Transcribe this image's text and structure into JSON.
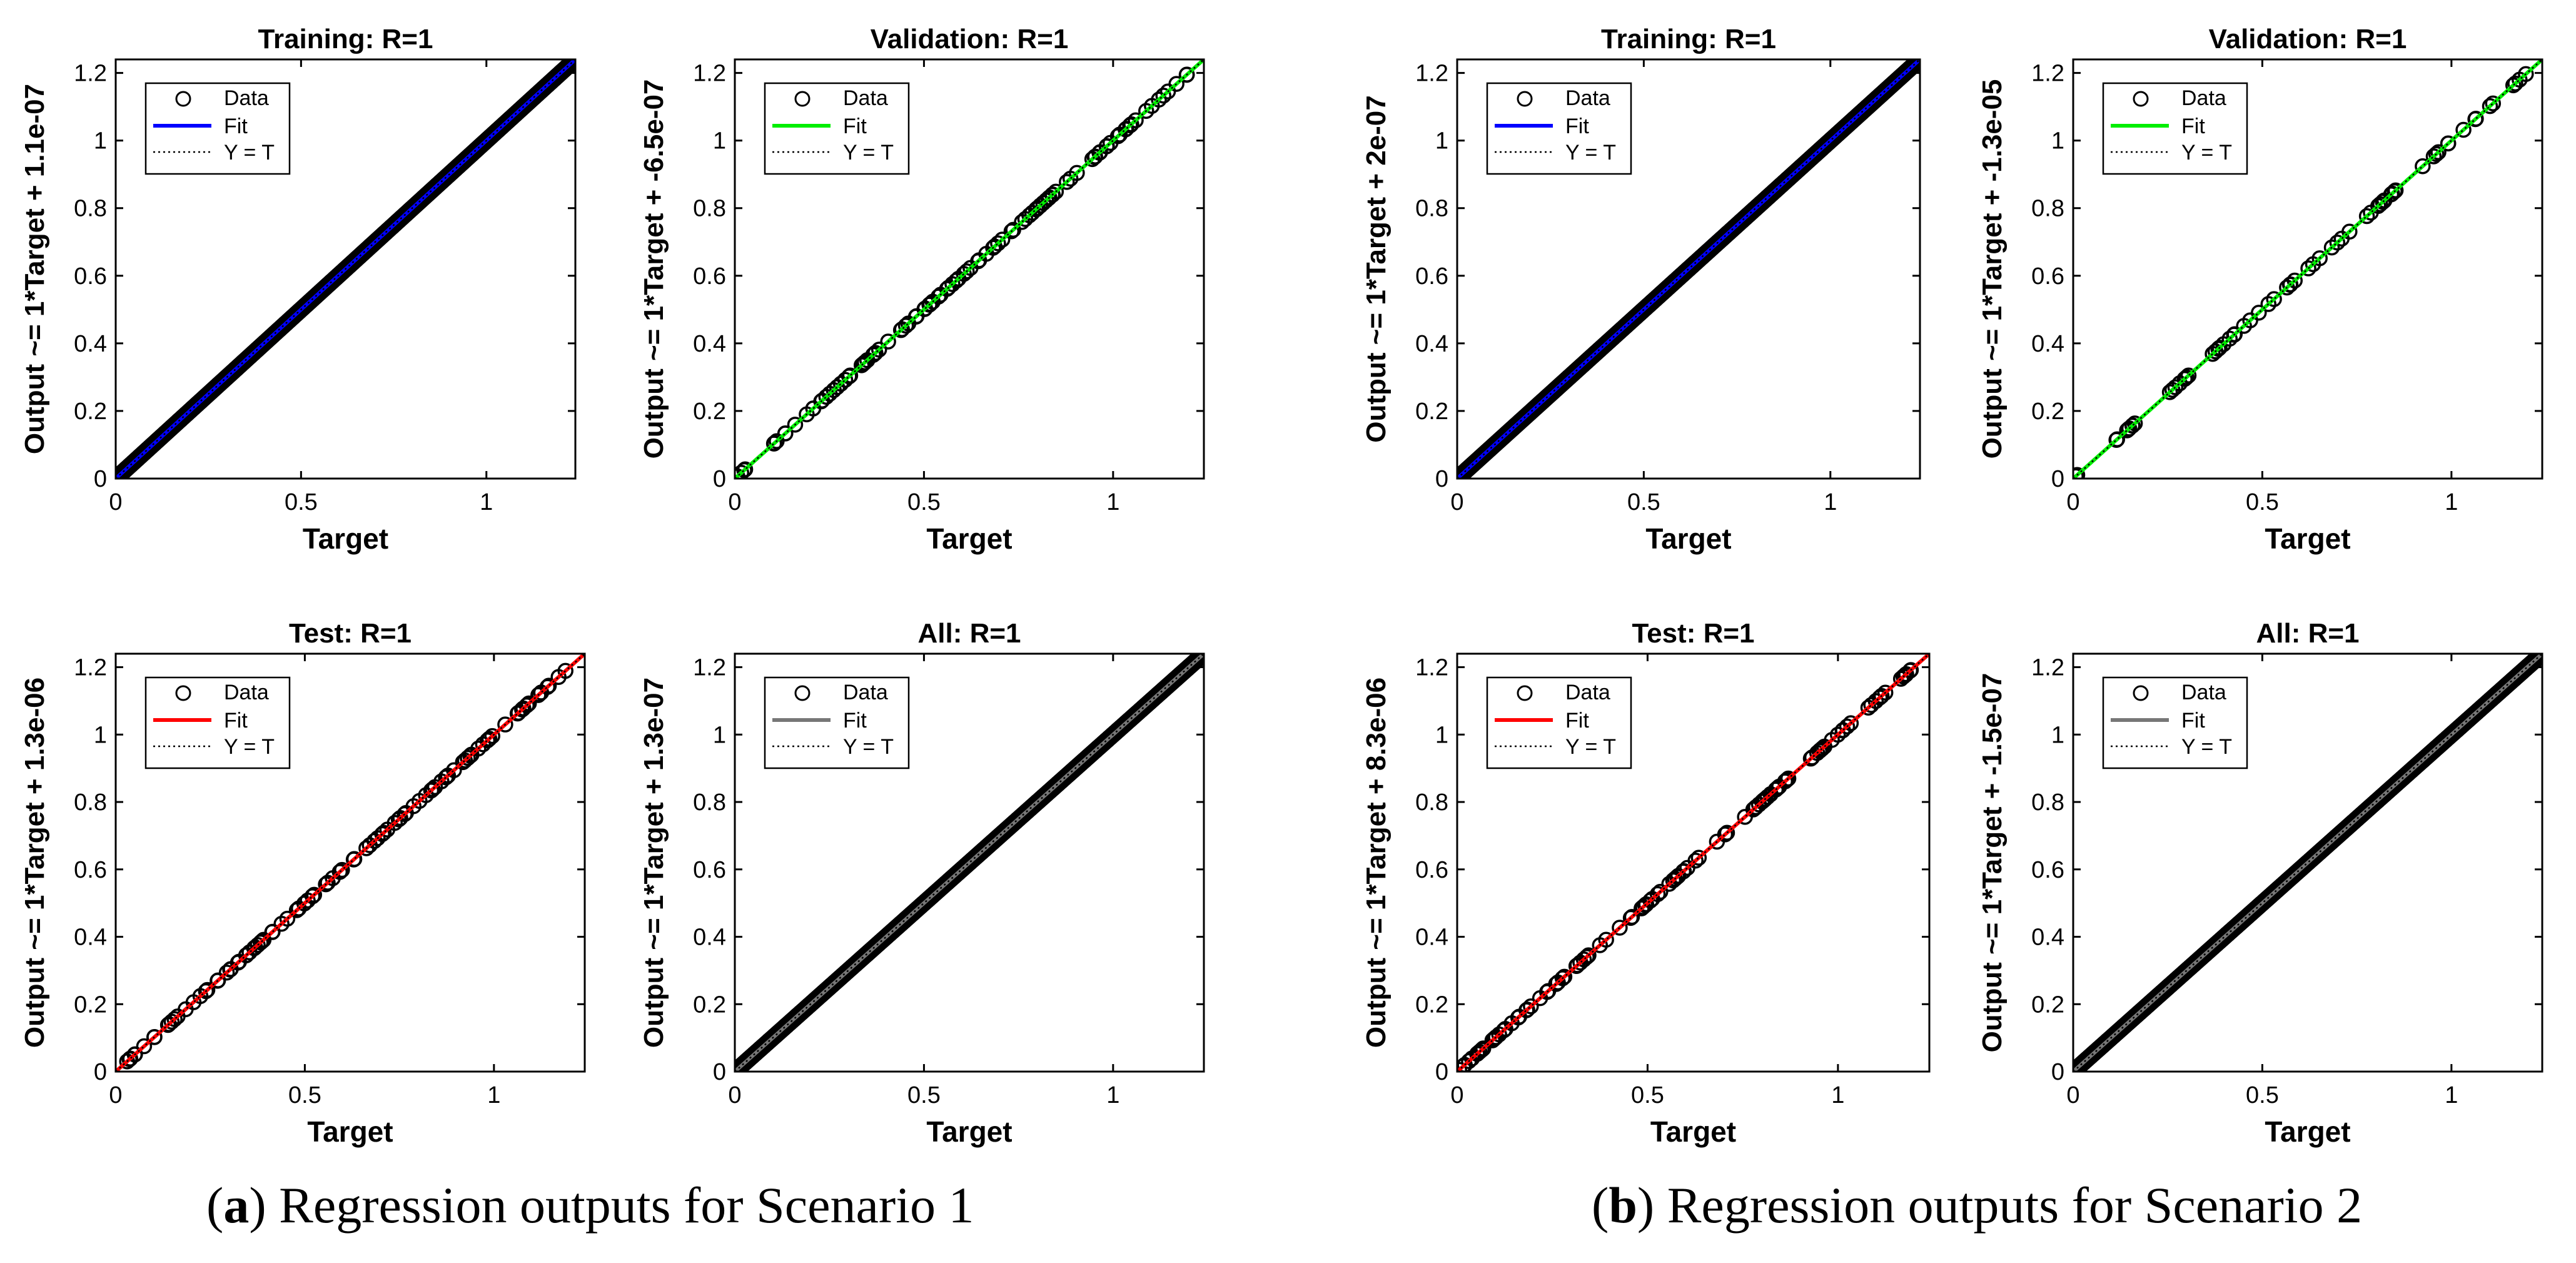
{
  "figure": {
    "captions": [
      {
        "paren_open": "(",
        "letter": "a",
        "text": ") Regression outputs for Scenario 1"
      },
      {
        "paren_open": "(",
        "letter": "b",
        "text": ") Regression outputs for Scenario 2"
      }
    ]
  },
  "colors": {
    "training": "#0000ff",
    "validation": "#00ee00",
    "test": "#ff0000",
    "all": "#777777",
    "data_marker": "#000000",
    "ideal_line": "#000000"
  },
  "chart_data": [
    {
      "id": "s1-training",
      "type": "scatter",
      "scenario": "a",
      "title": "Training: R=1",
      "xlabel": "Target",
      "ylabel": "Output ~= 1*Target + 1.1e-07",
      "fit_color_key": "training",
      "density": "dense",
      "xlim": [
        0,
        1.24
      ],
      "ylim": [
        0,
        1.24
      ],
      "xticks": [
        0,
        0.5,
        1
      ],
      "yticks": [
        0,
        0.2,
        0.4,
        0.6,
        0.8,
        1,
        1.2
      ],
      "legend": [
        "Data",
        "Fit",
        "Y = T"
      ],
      "legend_position": "top-left",
      "fit": {
        "slope": 1,
        "intercept": 1.1e-07
      }
    },
    {
      "id": "s1-validation",
      "type": "scatter",
      "scenario": "a",
      "title": "Validation: R=1",
      "xlabel": "Target",
      "ylabel": "Output ~= 1*Target + -6.5e-07",
      "fit_color_key": "validation",
      "density": "sparse",
      "xlim": [
        0,
        1.24
      ],
      "ylim": [
        0,
        1.24
      ],
      "xticks": [
        0,
        0.5,
        1
      ],
      "yticks": [
        0,
        0.2,
        0.4,
        0.6,
        0.8,
        1,
        1.2
      ],
      "legend": [
        "Data",
        "Fit",
        "Y = T"
      ],
      "legend_position": "top-left",
      "fit": {
        "slope": 1,
        "intercept": -6.5e-07
      }
    },
    {
      "id": "s2-training",
      "type": "scatter",
      "scenario": "b",
      "title": "Training: R=1",
      "xlabel": "Target",
      "ylabel": "Output ~= 1*Target + 2e-07",
      "fit_color_key": "training",
      "density": "dense",
      "xlim": [
        0,
        1.24
      ],
      "ylim": [
        0,
        1.24
      ],
      "xticks": [
        0,
        0.5,
        1
      ],
      "yticks": [
        0,
        0.2,
        0.4,
        0.6,
        0.8,
        1,
        1.2
      ],
      "legend": [
        "Data",
        "Fit",
        "Y = T"
      ],
      "legend_position": "top-left",
      "fit": {
        "slope": 1,
        "intercept": 2e-07
      }
    },
    {
      "id": "s2-validation",
      "type": "scatter",
      "scenario": "b",
      "title": "Validation: R=1",
      "xlabel": "Target",
      "ylabel": "Output ~= 1*Target + -1.3e-05",
      "fit_color_key": "validation",
      "density": "sparse",
      "xlim": [
        0,
        1.24
      ],
      "ylim": [
        0,
        1.24
      ],
      "xticks": [
        0,
        0.5,
        1
      ],
      "yticks": [
        0,
        0.2,
        0.4,
        0.6,
        0.8,
        1,
        1.2
      ],
      "legend": [
        "Data",
        "Fit",
        "Y = T"
      ],
      "legend_position": "top-left",
      "fit": {
        "slope": 1,
        "intercept": -1.3e-05
      }
    },
    {
      "id": "s1-test",
      "type": "scatter",
      "scenario": "a",
      "title": "Test: R=1",
      "xlabel": "Target",
      "ylabel": "Output ~= 1*Target + 1.3e-06",
      "fit_color_key": "test",
      "density": "sparse",
      "xlim": [
        0,
        1.24
      ],
      "ylim": [
        0,
        1.24
      ],
      "xticks": [
        0,
        0.5,
        1
      ],
      "yticks": [
        0,
        0.2,
        0.4,
        0.6,
        0.8,
        1,
        1.2
      ],
      "legend": [
        "Data",
        "Fit",
        "Y = T"
      ],
      "legend_position": "top-left",
      "fit": {
        "slope": 1,
        "intercept": 1.3e-06
      }
    },
    {
      "id": "s1-all",
      "type": "scatter",
      "scenario": "a",
      "title": "All: R=1",
      "xlabel": "Target",
      "ylabel": "Output ~= 1*Target + 1.3e-07",
      "fit_color_key": "all",
      "density": "dense",
      "xlim": [
        0,
        1.24
      ],
      "ylim": [
        0,
        1.24
      ],
      "xticks": [
        0,
        0.5,
        1
      ],
      "yticks": [
        0,
        0.2,
        0.4,
        0.6,
        0.8,
        1,
        1.2
      ],
      "legend": [
        "Data",
        "Fit",
        "Y = T"
      ],
      "legend_position": "top-left",
      "fit": {
        "slope": 1,
        "intercept": 1.3e-07
      }
    },
    {
      "id": "s2-test",
      "type": "scatter",
      "scenario": "b",
      "title": "Test: R=1",
      "xlabel": "Target",
      "ylabel": "Output ~= 1*Target + 8.3e-06",
      "fit_color_key": "test",
      "density": "sparse",
      "xlim": [
        0,
        1.24
      ],
      "ylim": [
        0,
        1.24
      ],
      "xticks": [
        0,
        0.5,
        1
      ],
      "yticks": [
        0,
        0.2,
        0.4,
        0.6,
        0.8,
        1,
        1.2
      ],
      "legend": [
        "Data",
        "Fit",
        "Y = T"
      ],
      "legend_position": "top-left",
      "fit": {
        "slope": 1,
        "intercept": 8.3e-06
      }
    },
    {
      "id": "s2-all",
      "type": "scatter",
      "scenario": "b",
      "title": "All: R=1",
      "xlabel": "Target",
      "ylabel": "Output ~= 1*Target + -1.5e-07",
      "fit_color_key": "all",
      "density": "dense",
      "xlim": [
        0,
        1.24
      ],
      "ylim": [
        0,
        1.24
      ],
      "xticks": [
        0,
        0.5,
        1
      ],
      "yticks": [
        0,
        0.2,
        0.4,
        0.6,
        0.8,
        1,
        1.2
      ],
      "legend": [
        "Data",
        "Fit",
        "Y = T"
      ],
      "legend_position": "top-left",
      "fit": {
        "slope": 1,
        "intercept": -1.5e-07
      }
    }
  ]
}
